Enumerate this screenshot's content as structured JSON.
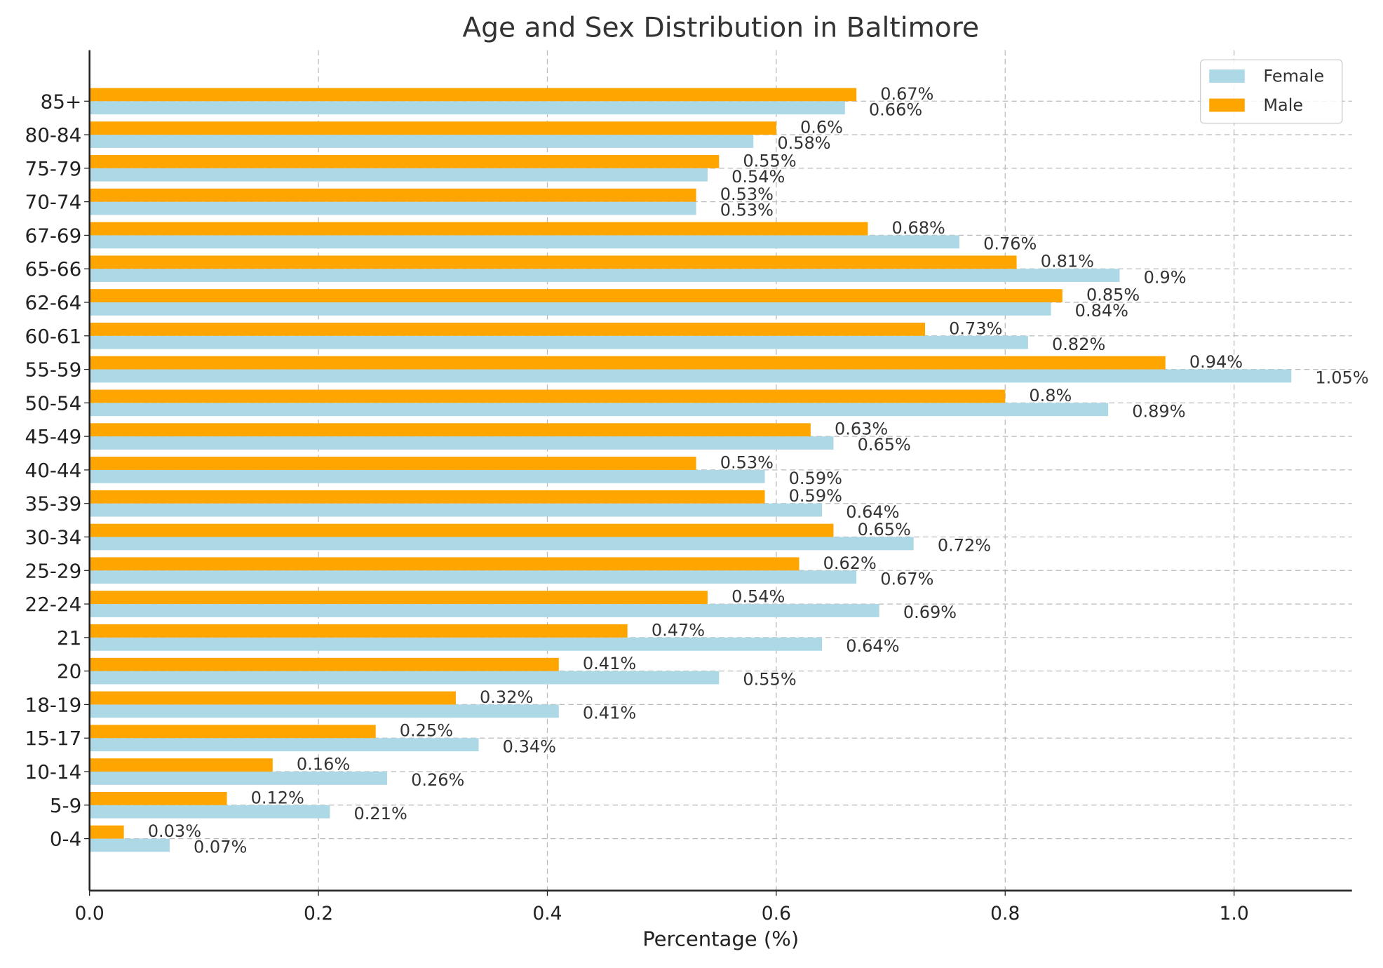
{
  "chart_data": {
    "type": "bar",
    "orientation": "horizontal",
    "title": "Age and Sex Distribution in Baltimore",
    "xlabel": "Percentage (%)",
    "ylabel": "",
    "xlim": [
      0,
      1.103
    ],
    "xticks": [
      "0.0",
      "0.2",
      "0.4",
      "0.6",
      "0.8",
      "1.0"
    ],
    "grid": true,
    "legend_position": "top-right",
    "categories": [
      "0-4",
      "5-9",
      "10-14",
      "15-17",
      "18-19",
      "20",
      "21",
      "22-24",
      "25-29",
      "30-34",
      "35-39",
      "40-44",
      "45-49",
      "50-54",
      "55-59",
      "60-61",
      "62-64",
      "65-66",
      "67-69",
      "70-74",
      "75-79",
      "80-84",
      "85+"
    ],
    "series": [
      {
        "name": "Female",
        "color": "#add8e6",
        "values": [
          0.07,
          0.21,
          0.26,
          0.34,
          0.41,
          0.55,
          0.64,
          0.69,
          0.67,
          0.72,
          0.64,
          0.59,
          0.65,
          0.89,
          1.05,
          0.82,
          0.84,
          0.9,
          0.76,
          0.53,
          0.54,
          0.58,
          0.66
        ],
        "labels": [
          "0.07%",
          "0.21%",
          "0.26%",
          "0.34%",
          "0.41%",
          "0.55%",
          "0.64%",
          "0.69%",
          "0.67%",
          "0.72%",
          "0.64%",
          "0.59%",
          "0.65%",
          "0.89%",
          "1.05%",
          "0.82%",
          "0.84%",
          "0.9%",
          "0.76%",
          "0.53%",
          "0.54%",
          "0.58%",
          "0.66%"
        ]
      },
      {
        "name": "Male",
        "color": "#ffa500",
        "values": [
          0.03,
          0.12,
          0.16,
          0.25,
          0.32,
          0.41,
          0.47,
          0.54,
          0.62,
          0.65,
          0.59,
          0.53,
          0.63,
          0.8,
          0.94,
          0.73,
          0.85,
          0.81,
          0.68,
          0.53,
          0.55,
          0.6,
          0.67
        ],
        "labels": [
          "0.03%",
          "0.12%",
          "0.16%",
          "0.25%",
          "0.32%",
          "0.41%",
          "0.47%",
          "0.54%",
          "0.62%",
          "0.65%",
          "0.59%",
          "0.53%",
          "0.63%",
          "0.8%",
          "0.94%",
          "0.73%",
          "0.85%",
          "0.81%",
          "0.68%",
          "0.53%",
          "0.55%",
          "0.6%",
          "0.67%"
        ]
      }
    ]
  }
}
